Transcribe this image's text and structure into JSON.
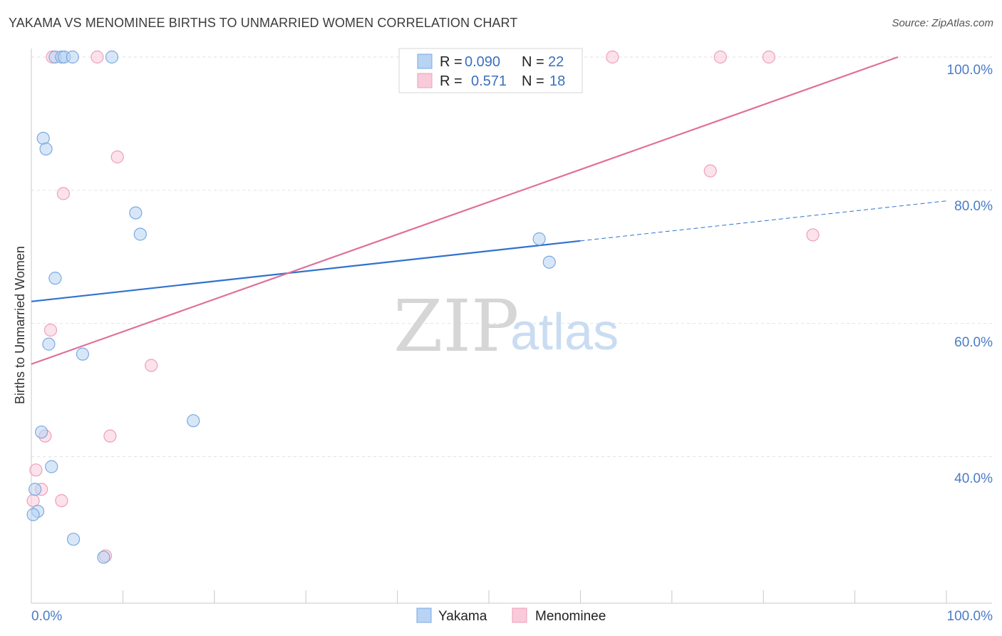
{
  "title": "YAKAMA VS MENOMINEE BIRTHS TO UNMARRIED WOMEN CORRELATION CHART",
  "source": "Source: ZipAtlas.com",
  "watermark": {
    "zip": "ZIP",
    "atlas": "atlas"
  },
  "legend": {
    "yakama": {
      "r_label": "R =",
      "r_value": "0.090",
      "n_label": "N =",
      "n_value": "22"
    },
    "menominee": {
      "r_label": "R =",
      "r_value": "0.571",
      "n_label": "N =",
      "n_value": "18"
    }
  },
  "colors": {
    "yakama_fill": "#b8d3f3",
    "yakama_stroke": "#7aaae2",
    "yakama_line": "#2f72cf",
    "menominee_fill": "#f9cada",
    "menominee_stroke": "#ee9fba",
    "menominee_line": "#e0709a",
    "grid": "#e2e2e2",
    "axis": "#c8c8c8"
  },
  "chart_data": {
    "type": "scatter",
    "title": "YAKAMA VS MENOMINEE BIRTHS TO UNMARRIED WOMEN CORRELATION CHART",
    "xlabel": "",
    "ylabel": "Births to Unmarried Women",
    "xlim": [
      0,
      100
    ],
    "ylim": [
      18,
      101.5
    ],
    "x_tick_labels": [
      "0.0%",
      "100.0%"
    ],
    "y_ticks": [
      40,
      60,
      80,
      100
    ],
    "y_tick_labels": [
      "40.0%",
      "60.0%",
      "80.0%",
      "100.0%"
    ],
    "grid": true,
    "legend_position": "top-center",
    "series": [
      {
        "name": "Yakama",
        "r": 0.09,
        "n": 22,
        "points": [
          {
            "x": 2.6,
            "y": 100.0
          },
          {
            "x": 3.3,
            "y": 100.0
          },
          {
            "x": 3.6,
            "y": 100.0
          },
          {
            "x": 4.5,
            "y": 100.0
          },
          {
            "x": 8.8,
            "y": 100.0
          },
          {
            "x": 1.3,
            "y": 87.8
          },
          {
            "x": 1.6,
            "y": 86.2
          },
          {
            "x": 11.4,
            "y": 76.6
          },
          {
            "x": 11.9,
            "y": 73.4
          },
          {
            "x": 2.6,
            "y": 66.8
          },
          {
            "x": 1.9,
            "y": 56.9
          },
          {
            "x": 5.6,
            "y": 55.4
          },
          {
            "x": 17.7,
            "y": 45.4
          },
          {
            "x": 1.1,
            "y": 43.7
          },
          {
            "x": 2.2,
            "y": 38.5
          },
          {
            "x": 0.4,
            "y": 35.1
          },
          {
            "x": 0.7,
            "y": 31.8
          },
          {
            "x": 0.2,
            "y": 31.3
          },
          {
            "x": 4.6,
            "y": 27.6
          },
          {
            "x": 7.9,
            "y": 24.9
          },
          {
            "x": 55.5,
            "y": 72.7
          },
          {
            "x": 56.6,
            "y": 69.2
          }
        ],
        "trend": {
          "x": [
            0,
            60
          ],
          "y": [
            63.3,
            72.4
          ],
          "dashed_to": {
            "x": 100,
            "y": 78.4
          }
        }
      },
      {
        "name": "Menominee",
        "r": 0.571,
        "n": 18,
        "points": [
          {
            "x": 2.3,
            "y": 100.0
          },
          {
            "x": 7.2,
            "y": 100.0
          },
          {
            "x": 63.5,
            "y": 100.0
          },
          {
            "x": 75.3,
            "y": 100.0
          },
          {
            "x": 80.6,
            "y": 100.0
          },
          {
            "x": 9.4,
            "y": 85.0
          },
          {
            "x": 3.5,
            "y": 79.5
          },
          {
            "x": 74.2,
            "y": 82.9
          },
          {
            "x": 85.4,
            "y": 73.3
          },
          {
            "x": 2.1,
            "y": 59.0
          },
          {
            "x": 13.1,
            "y": 53.7
          },
          {
            "x": 1.5,
            "y": 43.1
          },
          {
            "x": 8.6,
            "y": 43.1
          },
          {
            "x": 0.5,
            "y": 38.0
          },
          {
            "x": 1.1,
            "y": 35.1
          },
          {
            "x": 0.2,
            "y": 33.4
          },
          {
            "x": 3.3,
            "y": 33.4
          },
          {
            "x": 8.1,
            "y": 25.1
          }
        ],
        "trend": {
          "x": [
            0,
            94.7
          ],
          "y": [
            53.9,
            100.0
          ]
        }
      }
    ]
  },
  "bottom_legend": [
    "Yakama",
    "Menominee"
  ]
}
